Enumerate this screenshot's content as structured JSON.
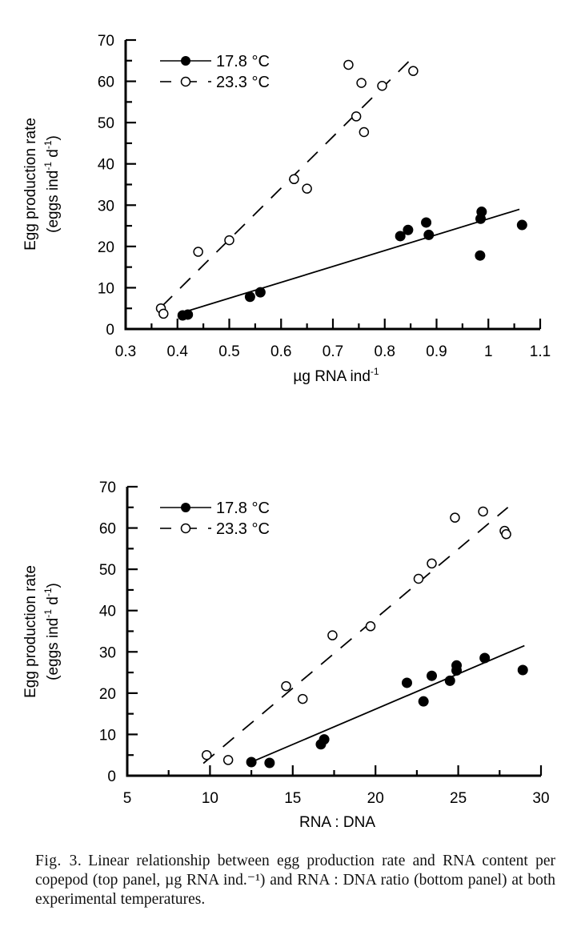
{
  "chart_data": [
    {
      "type": "scatter",
      "panel": "top",
      "xlabel": "µg RNA ind",
      "xlabel_sup": "-1",
      "ylabel_line1": "Egg production rate",
      "ylabel_line2": "(eggs ind",
      "ylabel_line2_sup1": "-1",
      "ylabel_line2_mid": " d",
      "ylabel_line2_sup2": "-1",
      "ylabel_line2_end": ")",
      "xlim": [
        0.3,
        1.1
      ],
      "ylim": [
        0,
        70
      ],
      "x_ticks": [
        0.3,
        0.4,
        0.5,
        0.6,
        0.7,
        0.8,
        0.9,
        1.0,
        1.1
      ],
      "x_tick_labels": [
        "0.3",
        "0.4",
        "0.5",
        "0.6",
        "0.7",
        "0.8",
        "0.9",
        "1",
        "1.1"
      ],
      "x_minor_step": 0.05,
      "y_ticks": [
        0,
        10,
        20,
        30,
        40,
        50,
        60,
        70
      ],
      "y_tick_labels": [
        "0",
        "10",
        "20",
        "30",
        "40",
        "50",
        "60",
        "70"
      ],
      "y_minor_step": 5,
      "grid": false,
      "legend_position": "top-left",
      "series": [
        {
          "name": "17.8 °C",
          "marker": "filled-circle",
          "line": "solid",
          "points": [
            [
              0.41,
              3.3
            ],
            [
              0.42,
              3.5
            ],
            [
              0.54,
              7.8
            ],
            [
              0.56,
              8.9
            ],
            [
              0.83,
              22.5
            ],
            [
              0.845,
              24.0
            ],
            [
              0.88,
              25.8
            ],
            [
              0.885,
              22.8
            ],
            [
              0.985,
              26.7
            ],
            [
              0.987,
              28.4
            ],
            [
              0.984,
              17.8
            ],
            [
              1.065,
              25.2
            ]
          ],
          "fit_line": [
            [
              0.41,
              4.0
            ],
            [
              1.06,
              29.0
            ]
          ]
        },
        {
          "name": "23.3 °C",
          "marker": "open-circle",
          "line": "dashed",
          "points": [
            [
              0.368,
              5.0
            ],
            [
              0.373,
              3.7
            ],
            [
              0.44,
              18.7
            ],
            [
              0.5,
              21.5
            ],
            [
              0.625,
              36.3
            ],
            [
              0.65,
              34.0
            ],
            [
              0.73,
              64.0
            ],
            [
              0.745,
              51.5
            ],
            [
              0.755,
              59.6
            ],
            [
              0.76,
              47.7
            ],
            [
              0.795,
              58.9
            ],
            [
              0.855,
              62.5
            ]
          ],
          "fit_line": [
            [
              0.37,
              5.5
            ],
            [
              0.86,
              66.5
            ]
          ]
        }
      ]
    },
    {
      "type": "scatter",
      "panel": "bottom",
      "xlabel": "RNA : DNA",
      "xlabel_sup": "",
      "ylabel_line1": "Egg production rate",
      "ylabel_line2": "(eggs ind",
      "ylabel_line2_sup1": "-1",
      "ylabel_line2_mid": " d",
      "ylabel_line2_sup2": "-1",
      "ylabel_line2_end": ")",
      "xlim": [
        5,
        30
      ],
      "ylim": [
        0,
        70
      ],
      "x_ticks": [
        5,
        10,
        15,
        20,
        25,
        30
      ],
      "x_tick_labels": [
        "5",
        "10",
        "15",
        "20",
        "25",
        "30"
      ],
      "x_minor_step": 2.5,
      "y_ticks": [
        0,
        10,
        20,
        30,
        40,
        50,
        60,
        70
      ],
      "y_tick_labels": [
        "0",
        "10",
        "20",
        "30",
        "40",
        "50",
        "60",
        "70"
      ],
      "y_minor_step": 5,
      "grid": false,
      "legend_position": "top-left",
      "series": [
        {
          "name": "17.8 °C",
          "marker": "filled-circle",
          "line": "solid",
          "points": [
            [
              12.5,
              3.3
            ],
            [
              13.6,
              3.1
            ],
            [
              16.7,
              7.6
            ],
            [
              16.9,
              8.8
            ],
            [
              21.9,
              22.5
            ],
            [
              22.9,
              18.0
            ],
            [
              23.4,
              24.2
            ],
            [
              24.5,
              23.0
            ],
            [
              24.9,
              25.5
            ],
            [
              24.9,
              26.7
            ],
            [
              26.6,
              28.5
            ],
            [
              28.9,
              25.6
            ]
          ],
          "fit_line": [
            [
              12.5,
              3.3
            ],
            [
              29.0,
              31.5
            ]
          ]
        },
        {
          "name": "23.3 °C",
          "marker": "open-circle",
          "line": "dashed",
          "points": [
            [
              9.8,
              5.0
            ],
            [
              11.1,
              3.8
            ],
            [
              14.6,
              21.7
            ],
            [
              15.6,
              18.6
            ],
            [
              17.4,
              34.0
            ],
            [
              19.7,
              36.2
            ],
            [
              22.6,
              47.7
            ],
            [
              23.4,
              51.4
            ],
            [
              24.8,
              62.5
            ],
            [
              26.5,
              64.0
            ],
            [
              27.8,
              59.3
            ],
            [
              27.9,
              58.5
            ]
          ],
          "fit_line": [
            [
              9.6,
              3.0
            ],
            [
              28.0,
              65.0
            ]
          ]
        }
      ]
    }
  ],
  "caption": {
    "label": "Fig. 3.",
    "text": "Linear relationship between egg production rate and RNA content per copepod (top panel, µg RNA ind.⁻¹) and RNA : DNA ratio (bottom panel) at both experimental temperatures."
  }
}
